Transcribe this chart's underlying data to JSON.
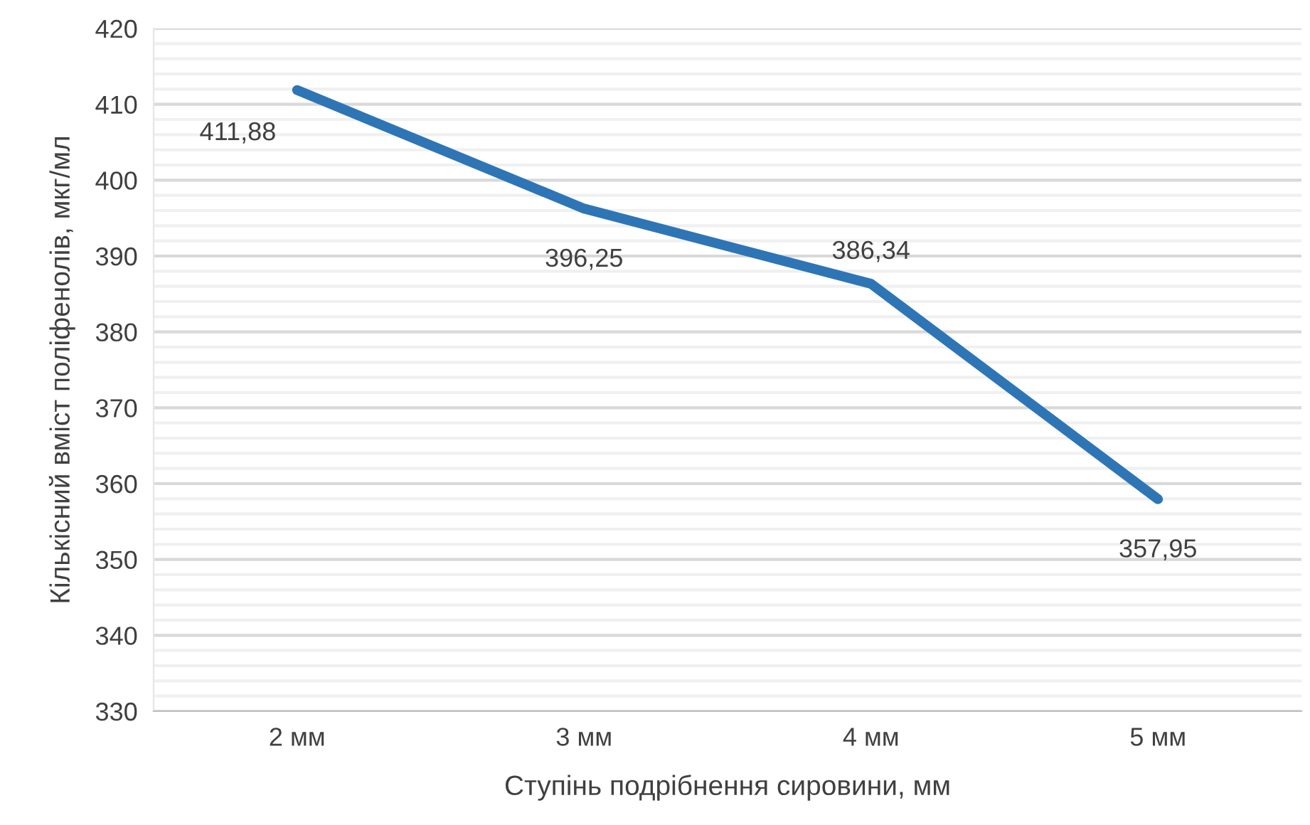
{
  "chart_data": {
    "type": "line",
    "xlabel": "Ступінь подрібнення сировини, мм",
    "ylabel": "Кількісний вміст поліфенолів, мкг/мл",
    "categories": [
      "2 мм",
      "3 мм",
      "4 мм",
      "5 мм"
    ],
    "series": [
      {
        "color": "#2e75b6",
        "values": [
          411.88,
          396.25,
          386.34,
          357.95
        ],
        "value_labels": [
          "411,88",
          "396,25",
          "386,34",
          "357,95"
        ]
      }
    ],
    "ylim": [
      330,
      420
    ],
    "yticks": [
      330,
      340,
      350,
      360,
      370,
      380,
      390,
      400,
      410,
      420
    ],
    "grid": "y",
    "legend": false,
    "marker": "none",
    "line_style": "solid"
  }
}
